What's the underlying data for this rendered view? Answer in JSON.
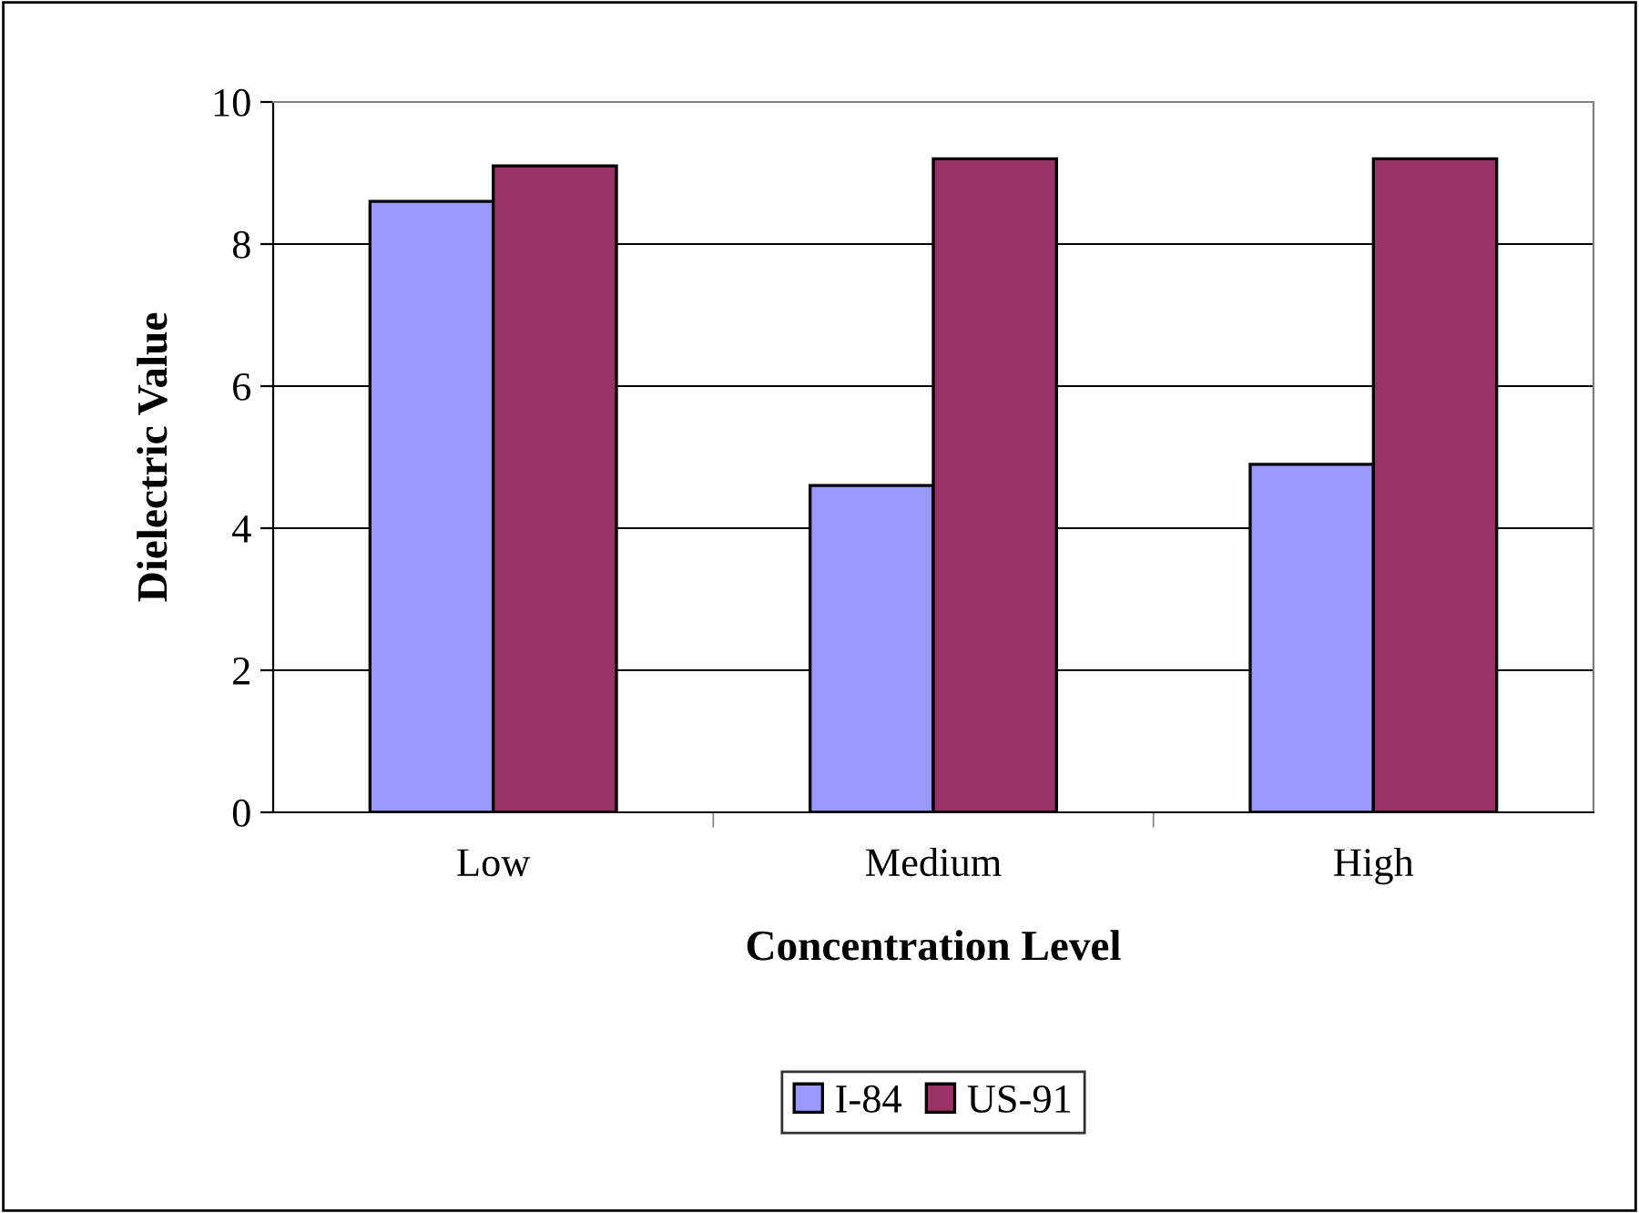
{
  "chart_data": {
    "type": "bar",
    "xlabel": "Concentration Level",
    "ylabel": "Dielectric Value",
    "categories": [
      "Low",
      "Medium",
      "High"
    ],
    "series": [
      {
        "name": "I-84",
        "color": "#9999ff",
        "values": [
          8.6,
          4.6,
          4.9
        ]
      },
      {
        "name": "US-91",
        "color": "#993366",
        "values": [
          9.1,
          9.2,
          9.2
        ]
      }
    ],
    "ylim": [
      0,
      10
    ],
    "yticks": [
      0,
      2,
      4,
      6,
      8,
      10
    ],
    "grid": "y",
    "legend": "bottom"
  }
}
